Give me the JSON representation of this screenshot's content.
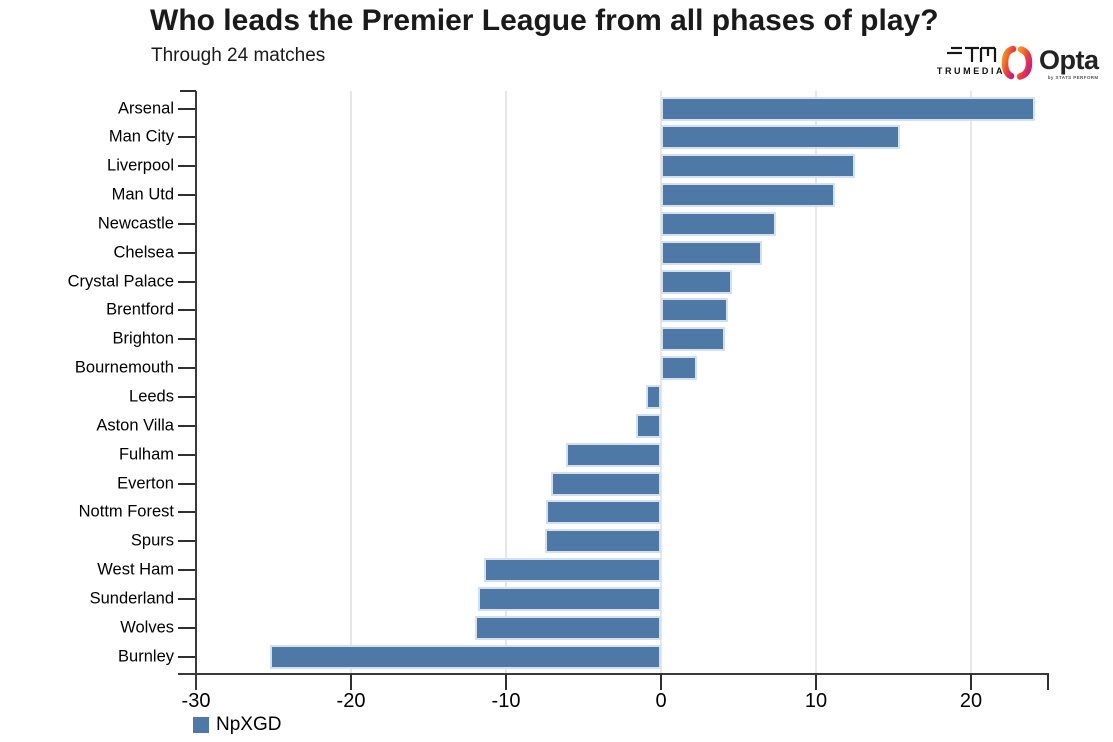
{
  "header": {
    "title": "Who leads the Premier League from all phases of play?",
    "subtitle": "Through 24 matches"
  },
  "branding": {
    "trumedia_label": "TRUMEDIA",
    "opta_label": "Opta",
    "opta_sublabel": "by STATS PERFORM"
  },
  "legend": {
    "label": "NpXGD",
    "swatch_color": "#4e79a7"
  },
  "chart_data": {
    "type": "bar",
    "orientation": "horizontal",
    "title": "Who leads the Premier League from all phases of play?",
    "subtitle": "Through 24 matches",
    "series_label": "NpXGD",
    "categories": [
      "Arsenal",
      "Man City",
      "Liverpool",
      "Man Utd",
      "Newcastle",
      "Chelsea",
      "Crystal Palace",
      "Brentford",
      "Brighton",
      "Bournemouth",
      "Leeds",
      "Aston Villa",
      "Fulham",
      "Everton",
      "Nottm Forest",
      "Spurs",
      "West Ham",
      "Sunderland",
      "Wolves",
      "Burnley"
    ],
    "values": [
      24.1,
      15.4,
      12.5,
      11.2,
      7.4,
      6.5,
      4.6,
      4.3,
      4.1,
      2.3,
      -1.0,
      -1.6,
      -6.1,
      -7.1,
      -7.4,
      -7.5,
      -11.4,
      -11.8,
      -12.0,
      -25.2
    ],
    "xlim": [
      -30,
      25
    ],
    "x_ticks": [
      -30,
      -20,
      -10,
      0,
      10,
      20
    ],
    "grid": true,
    "bar_color": "#4e79a7",
    "legend_position": "bottom-left"
  }
}
